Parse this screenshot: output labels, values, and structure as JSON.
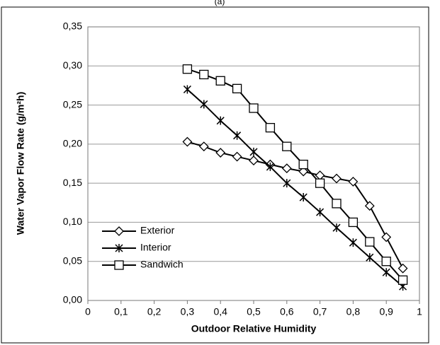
{
  "chart_data": {
    "type": "line",
    "title": "(a)",
    "x_label": "Outdoor Relative Humidity",
    "y_label": "Water Vapor Flow Rate (g/m²h)",
    "x": [
      0.3,
      0.35,
      0.4,
      0.45,
      0.5,
      0.55,
      0.6,
      0.65,
      0.7,
      0.75,
      0.8,
      0.85,
      0.9,
      0.95
    ],
    "series": [
      {
        "name": "Exterior",
        "color": "#000000",
        "marker": "diamond",
        "values": [
          0.203,
          0.197,
          0.189,
          0.184,
          0.179,
          0.174,
          0.169,
          0.165,
          0.16,
          0.156,
          0.152,
          0.121,
          0.081,
          0.041
        ]
      },
      {
        "name": "Interior",
        "color": "#000000",
        "marker": "asterisk",
        "values": [
          0.27,
          0.251,
          0.23,
          0.211,
          0.19,
          0.171,
          0.15,
          0.132,
          0.113,
          0.093,
          0.074,
          0.055,
          0.036,
          0.018
        ]
      },
      {
        "name": "Sandwich",
        "color": "#000000",
        "marker": "square",
        "values": [
          0.296,
          0.289,
          0.281,
          0.271,
          0.246,
          0.221,
          0.197,
          0.174,
          0.15,
          0.124,
          0.1,
          0.075,
          0.05,
          0.026
        ]
      }
    ],
    "xlim": [
      0,
      1
    ],
    "xticks": [
      0,
      {
        "value": 0.1,
        "label": "0,1"
      },
      {
        "value": 0.2,
        "label": "0,2"
      },
      {
        "value": 0.3,
        "label": "0,3"
      },
      {
        "value": 0.4,
        "label": "0,4"
      },
      {
        "value": 0.5,
        "label": "0,5"
      },
      {
        "value": 0.6,
        "label": "0,6"
      },
      {
        "value": 0.7,
        "label": "0,7"
      },
      {
        "value": 0.8,
        "label": "0,8"
      },
      {
        "value": 0.9,
        "label": "0,9"
      },
      1
    ],
    "ylim": [
      0,
      0.35
    ],
    "yticks": [
      {
        "value": 0,
        "label": "0,00"
      },
      {
        "value": 0.05,
        "label": "0,05"
      },
      {
        "value": 0.1,
        "label": "0,10"
      },
      {
        "value": 0.15,
        "label": "0,15"
      },
      {
        "value": 0.2,
        "label": "0,20"
      },
      {
        "value": 0.25,
        "label": "0,25"
      },
      {
        "value": 0.3,
        "label": "0,30"
      },
      {
        "value": 0.35,
        "label": "0,35"
      }
    ],
    "grid": true,
    "legend": "lower left"
  }
}
